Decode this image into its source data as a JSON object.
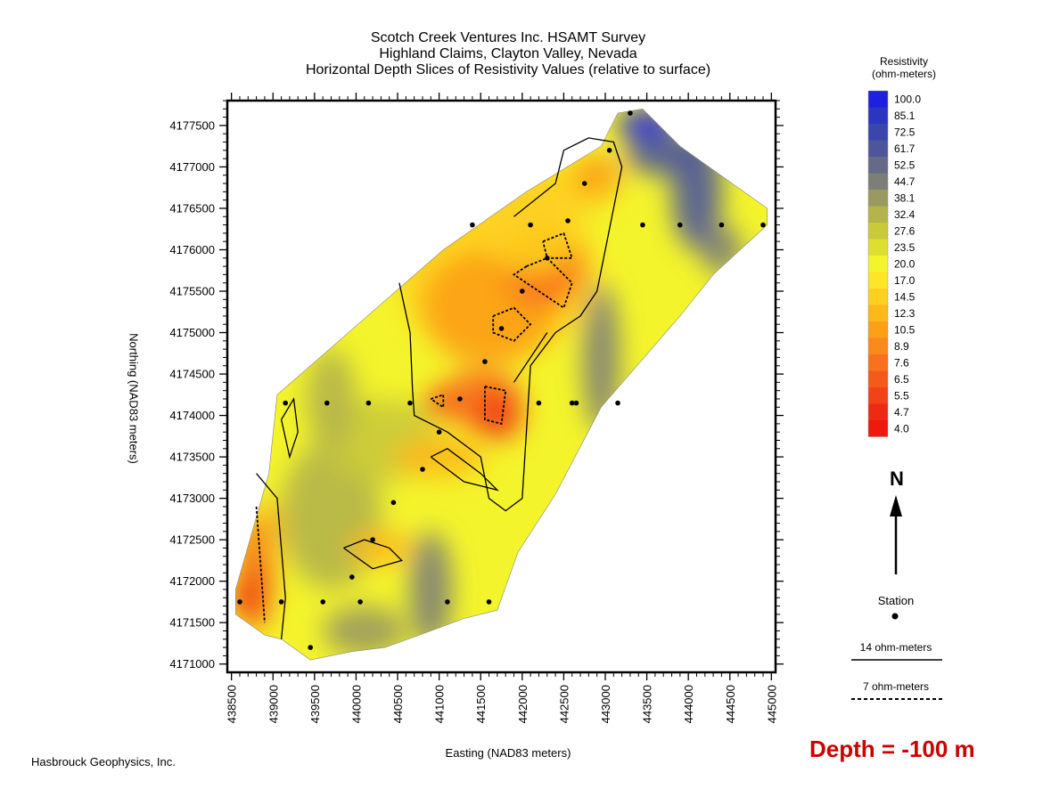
{
  "chart_data": {
    "type": "heatmap",
    "title_lines": [
      "Scotch Creek Ventures Inc. HSAMT Survey",
      "Highland Claims, Clayton Valley, Nevada",
      "Horizontal Depth Slices of Resistivity Values (relative to surface)"
    ],
    "xlabel": "Easting (NAD83 meters)",
    "ylabel": "Northing (NAD83 meters)",
    "xlim": [
      438450,
      445050
    ],
    "ylim": [
      4170900,
      4177800
    ],
    "x_ticks": [
      438500,
      439000,
      439500,
      440000,
      440500,
      441000,
      441500,
      442000,
      442500,
      443000,
      443500,
      444000,
      444500,
      445000
    ],
    "y_ticks": [
      4171000,
      4171500,
      4172000,
      4172500,
      4173000,
      4173500,
      4174000,
      4174500,
      4175000,
      4175500,
      4176000,
      4176500,
      4177000,
      4177500
    ],
    "colorbar": {
      "title_lines": [
        "Resistivity",
        "(ohm-meters)"
      ],
      "levels": [
        "100.0",
        "85.1",
        "72.5",
        "61.7",
        "52.5",
        "44.7",
        "38.1",
        "32.4",
        "27.6",
        "23.5",
        "20.0",
        "17.0",
        "14.5",
        "12.3",
        "10.5",
        "8.9",
        "7.6",
        "6.5",
        "5.5",
        "4.7",
        "4.0"
      ],
      "colors": [
        "#1f1fe0",
        "#2c35c0",
        "#3b46ad",
        "#4d569a",
        "#656a88",
        "#7c7e78",
        "#9a9a60",
        "#b3b44a",
        "#c9c93a",
        "#dede30",
        "#f4f42c",
        "#fbe628",
        "#fdd020",
        "#fdb81a",
        "#fca01a",
        "#fb8a1c",
        "#f8711c",
        "#f45a1a",
        "#f24218",
        "#ef2a14",
        "#ee1a10"
      ]
    },
    "survey_boundary": [
      [
        438550,
        4171600
      ],
      [
        438550,
        4171900
      ],
      [
        438950,
        4173300
      ],
      [
        439050,
        4174250
      ],
      [
        441050,
        4176000
      ],
      [
        442050,
        4176700
      ],
      [
        442950,
        4177250
      ],
      [
        443150,
        4177650
      ],
      [
        443450,
        4177700
      ],
      [
        443900,
        4177250
      ],
      [
        444950,
        4176500
      ],
      [
        444950,
        4176300
      ],
      [
        444300,
        4175700
      ],
      [
        443900,
        4175200
      ],
      [
        442950,
        4174100
      ],
      [
        442400,
        4173050
      ],
      [
        441950,
        4172350
      ],
      [
        441700,
        4171650
      ],
      [
        441300,
        4171550
      ],
      [
        440900,
        4171400
      ],
      [
        440350,
        4171200
      ],
      [
        439950,
        4171150
      ],
      [
        439450,
        4171050
      ],
      [
        439100,
        4171300
      ],
      [
        438900,
        4171350
      ],
      [
        438550,
        4171600
      ]
    ],
    "stations": [
      [
        438600,
        4171750
      ],
      [
        439100,
        4171750
      ],
      [
        439600,
        4171750
      ],
      [
        440050,
        4171750
      ],
      [
        441100,
        4171750
      ],
      [
        441600,
        4171750
      ],
      [
        439950,
        4172050
      ],
      [
        440200,
        4172500
      ],
      [
        440450,
        4172950
      ],
      [
        440800,
        4173350
      ],
      [
        441000,
        4173800
      ],
      [
        441250,
        4174200
      ],
      [
        439450,
        4171200
      ],
      [
        439150,
        4174150
      ],
      [
        439650,
        4174150
      ],
      [
        440150,
        4174150
      ],
      [
        440650,
        4174150
      ],
      [
        441550,
        4174650
      ],
      [
        441750,
        4175050
      ],
      [
        442000,
        4175500
      ],
      [
        442300,
        4175900
      ],
      [
        442100,
        4176300
      ],
      [
        441400,
        4176300
      ],
      [
        442550,
        4176350
      ],
      [
        443450,
        4176300
      ],
      [
        443900,
        4176300
      ],
      [
        444400,
        4176300
      ],
      [
        444900,
        4176300
      ],
      [
        442750,
        4176800
      ],
      [
        443050,
        4177200
      ],
      [
        443300,
        4177650
      ],
      [
        442600,
        4174150
      ],
      [
        442200,
        4174150
      ],
      [
        442650,
        4174150
      ],
      [
        443150,
        4174150
      ]
    ],
    "station_legend": "Station",
    "contour_legend": [
      {
        "label": "14 ohm-meters",
        "style": "solid"
      },
      {
        "label": "7 ohm-meters",
        "style": "dashed"
      }
    ],
    "north_arrow": "N",
    "depth_label": "Depth = -100 m"
  },
  "credit": "Hasbrouck Geophysics, Inc."
}
